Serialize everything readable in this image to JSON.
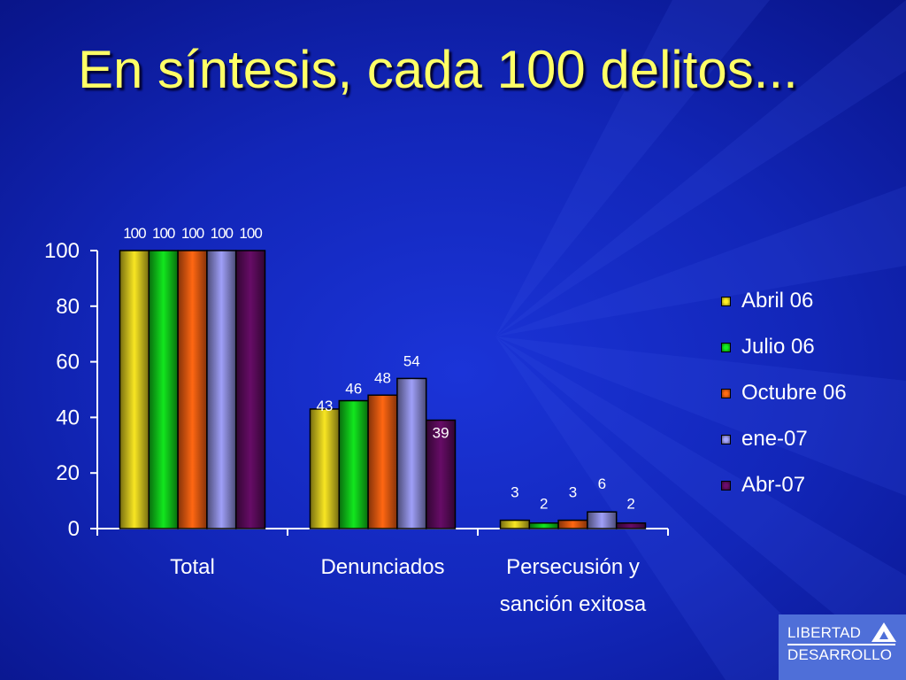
{
  "slide": {
    "title": "En síntesis, cada 100 delitos..."
  },
  "colors": {
    "series": [
      "#d8c81e",
      "#10c81a",
      "#f05a10",
      "#8a8ad8",
      "#5a0a5a"
    ],
    "title": "#ffff66",
    "axis": "#ffffff"
  },
  "chart_data": {
    "type": "bar",
    "categories": [
      "Total",
      "Denunciados",
      "Persecusión y sanción exitosa"
    ],
    "category_lines": [
      [
        "Total"
      ],
      [
        "Denunciados"
      ],
      [
        "Persecusión y",
        "sanción exitosa"
      ]
    ],
    "series": [
      {
        "name": "Abril 06",
        "values": [
          100,
          43,
          3
        ]
      },
      {
        "name": "Julio 06",
        "values": [
          100,
          46,
          2
        ]
      },
      {
        "name": "Octubre 06",
        "values": [
          100,
          48,
          3
        ]
      },
      {
        "name": "ene-07",
        "values": [
          100,
          54,
          6
        ]
      },
      {
        "name": "Abr-07",
        "values": [
          100,
          39,
          2
        ]
      }
    ],
    "ylim": [
      0,
      100
    ],
    "yticks": [
      0,
      20,
      40,
      60,
      80,
      100
    ],
    "grid": false,
    "legend_position": "right",
    "data_labels": true
  },
  "logo": {
    "line1": "LIBERTAD",
    "line2": "DESARROLLO"
  }
}
